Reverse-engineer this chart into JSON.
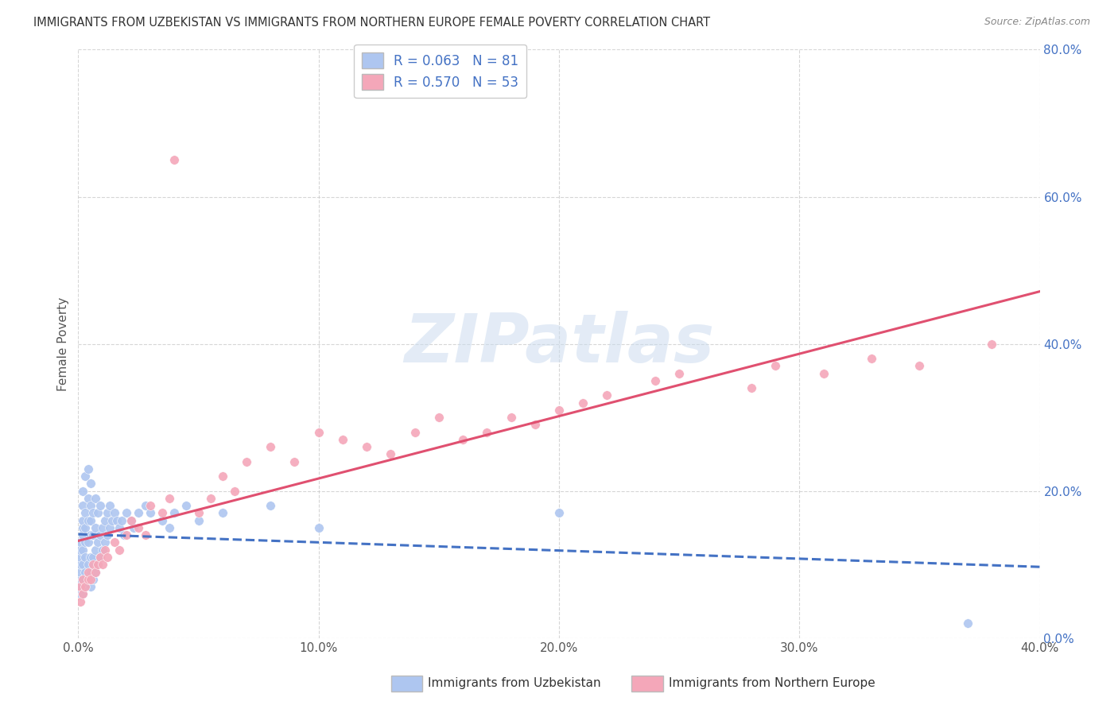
{
  "title": "IMMIGRANTS FROM UZBEKISTAN VS IMMIGRANTS FROM NORTHERN EUROPE FEMALE POVERTY CORRELATION CHART",
  "source": "Source: ZipAtlas.com",
  "ylabel": "Female Poverty",
  "xlim": [
    0.0,
    0.4
  ],
  "ylim": [
    0.0,
    0.8
  ],
  "xlabel_tick_vals": [
    0.0,
    0.1,
    0.2,
    0.3,
    0.4
  ],
  "ylabel_tick_vals": [
    0.0,
    0.2,
    0.4,
    0.6,
    0.8
  ],
  "watermark_text": "ZIPatlas",
  "series": [
    {
      "name": "Immigrants from Uzbekistan",
      "R": 0.063,
      "N": 81,
      "color_fill": "#aec6f0",
      "color_line": "#4472c4",
      "line_style": "--",
      "x": [
        0.001,
        0.001,
        0.001,
        0.001,
        0.001,
        0.001,
        0.001,
        0.001,
        0.002,
        0.002,
        0.002,
        0.002,
        0.002,
        0.002,
        0.002,
        0.002,
        0.002,
        0.003,
        0.003,
        0.003,
        0.003,
        0.003,
        0.003,
        0.003,
        0.004,
        0.004,
        0.004,
        0.004,
        0.004,
        0.004,
        0.005,
        0.005,
        0.005,
        0.005,
        0.005,
        0.005,
        0.005,
        0.006,
        0.006,
        0.006,
        0.006,
        0.007,
        0.007,
        0.007,
        0.007,
        0.008,
        0.008,
        0.008,
        0.009,
        0.009,
        0.009,
        0.01,
        0.01,
        0.011,
        0.011,
        0.012,
        0.012,
        0.013,
        0.013,
        0.014,
        0.015,
        0.016,
        0.017,
        0.018,
        0.019,
        0.02,
        0.022,
        0.023,
        0.025,
        0.028,
        0.03,
        0.035,
        0.038,
        0.04,
        0.045,
        0.05,
        0.06,
        0.08,
        0.1,
        0.2,
        0.37
      ],
      "y": [
        0.06,
        0.07,
        0.08,
        0.09,
        0.1,
        0.11,
        0.12,
        0.13,
        0.06,
        0.08,
        0.1,
        0.12,
        0.14,
        0.15,
        0.16,
        0.18,
        0.2,
        0.07,
        0.09,
        0.11,
        0.13,
        0.15,
        0.17,
        0.22,
        0.08,
        0.1,
        0.13,
        0.16,
        0.19,
        0.23,
        0.07,
        0.09,
        0.11,
        0.14,
        0.16,
        0.18,
        0.21,
        0.08,
        0.11,
        0.14,
        0.17,
        0.09,
        0.12,
        0.15,
        0.19,
        0.1,
        0.13,
        0.17,
        0.11,
        0.14,
        0.18,
        0.12,
        0.15,
        0.13,
        0.16,
        0.14,
        0.17,
        0.15,
        0.18,
        0.16,
        0.17,
        0.16,
        0.15,
        0.16,
        0.14,
        0.17,
        0.16,
        0.15,
        0.17,
        0.18,
        0.17,
        0.16,
        0.15,
        0.17,
        0.18,
        0.16,
        0.17,
        0.18,
        0.15,
        0.17,
        0.02
      ]
    },
    {
      "name": "Immigrants from Northern Europe",
      "R": 0.57,
      "N": 53,
      "color_fill": "#f4a7b9",
      "color_line": "#e05070",
      "line_style": "-",
      "x": [
        0.001,
        0.001,
        0.002,
        0.002,
        0.003,
        0.004,
        0.004,
        0.005,
        0.006,
        0.007,
        0.008,
        0.009,
        0.01,
        0.011,
        0.012,
        0.015,
        0.017,
        0.02,
        0.022,
        0.025,
        0.028,
        0.03,
        0.035,
        0.038,
        0.04,
        0.05,
        0.055,
        0.06,
        0.065,
        0.07,
        0.08,
        0.09,
        0.1,
        0.11,
        0.12,
        0.13,
        0.14,
        0.15,
        0.16,
        0.17,
        0.18,
        0.19,
        0.2,
        0.21,
        0.22,
        0.24,
        0.25,
        0.28,
        0.29,
        0.31,
        0.33,
        0.35,
        0.38
      ],
      "y": [
        0.05,
        0.07,
        0.06,
        0.08,
        0.07,
        0.08,
        0.09,
        0.08,
        0.1,
        0.09,
        0.1,
        0.11,
        0.1,
        0.12,
        0.11,
        0.13,
        0.12,
        0.14,
        0.16,
        0.15,
        0.14,
        0.18,
        0.17,
        0.19,
        0.65,
        0.17,
        0.19,
        0.22,
        0.2,
        0.24,
        0.26,
        0.24,
        0.28,
        0.27,
        0.26,
        0.25,
        0.28,
        0.3,
        0.27,
        0.28,
        0.3,
        0.29,
        0.31,
        0.32,
        0.33,
        0.35,
        0.36,
        0.34,
        0.37,
        0.36,
        0.38,
        0.37,
        0.4
      ]
    }
  ]
}
